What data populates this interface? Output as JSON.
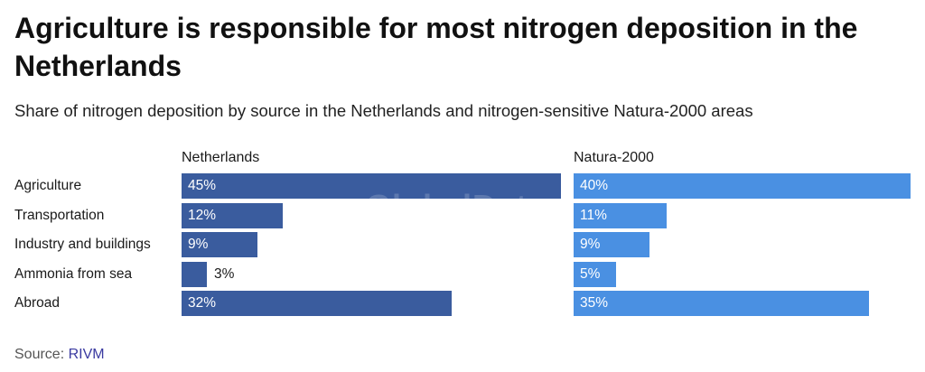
{
  "chart_data": {
    "type": "bar",
    "orientation": "horizontal",
    "title": "Agriculture is responsible for most nitrogen deposition in the Netherlands",
    "subtitle": "Share of nitrogen deposition by source in the Netherlands and nitrogen-sensitive Natura-2000 areas",
    "categories": [
      "Agriculture",
      "Transportation",
      "Industry and buildings",
      "Ammonia from sea",
      "Abroad"
    ],
    "series": [
      {
        "name": "Netherlands",
        "values": [
          45,
          12,
          9,
          3,
          32
        ],
        "labels": [
          "45%",
          "12%",
          "9%",
          "3%",
          "32%"
        ],
        "color": "#3a5c9e"
      },
      {
        "name": "Natura-2000",
        "values": [
          40,
          11,
          9,
          5,
          35
        ],
        "labels": [
          "40%",
          "11%",
          "9%",
          "5%",
          "35%"
        ],
        "color": "#4a90e2"
      }
    ],
    "unit": "%",
    "xlim": [
      0,
      45
    ],
    "grid": false,
    "legend": "none",
    "source_label": "Source: ",
    "source_name": "RIVM",
    "watermark": "GlobalData"
  }
}
